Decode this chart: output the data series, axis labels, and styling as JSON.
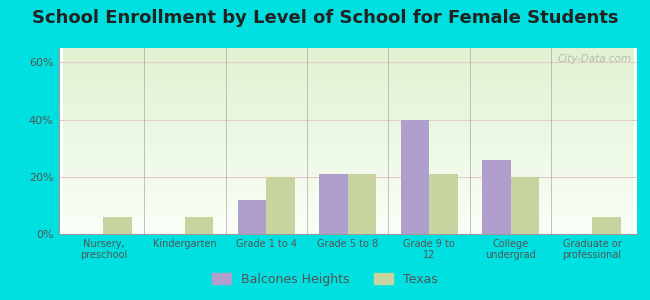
{
  "title": "School Enrollment by Level of School for Female Students",
  "categories": [
    "Nursery,\npreschool",
    "Kindergarten",
    "Grade 1 to 4",
    "Grade 5 to 8",
    "Grade 9 to\n12",
    "College\nundergrad",
    "Graduate or\nprofessional"
  ],
  "balcones_heights": [
    0,
    0,
    12,
    21,
    40,
    26,
    0
  ],
  "texas": [
    6,
    6,
    20,
    21,
    21,
    20,
    6
  ],
  "bar_color_bh": "#b09fcc",
  "bar_color_tx": "#c8d4a0",
  "bg_top_color": "#f0faf0",
  "bg_bottom_color": "#e8f5e0",
  "outer_background": "#00e0e0",
  "ylim_max": 65,
  "yticks": [
    0,
    20,
    40,
    60
  ],
  "ytick_labels": [
    "0%",
    "20%",
    "40%",
    "60%"
  ],
  "legend_labels": [
    "Balcones Heights",
    "Texas"
  ],
  "title_fontsize": 13,
  "bar_width": 0.35,
  "grid_color": "#e8c8c8",
  "watermark": "City-Data.com"
}
